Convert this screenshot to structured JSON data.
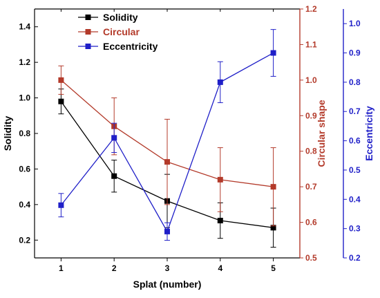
{
  "chart_data": {
    "type": "line",
    "x": [
      1,
      2,
      3,
      4,
      5
    ],
    "xticks": [
      "1",
      "2",
      "3",
      "4",
      "5"
    ],
    "xlabel": "Splat (number)",
    "xlim": [
      0.5,
      5.5
    ],
    "axes": {
      "left": {
        "label": "Solidity",
        "ylim": [
          0.1,
          1.5
        ],
        "ticks": [
          "0.2",
          "0.4",
          "0.6",
          "0.8",
          "1.0",
          "1.2",
          "1.4"
        ],
        "color": "#000000"
      },
      "right1": {
        "label": "Circular shape",
        "ylim": [
          0.5,
          1.2
        ],
        "ticks": [
          "0.5",
          "0.6",
          "0.7",
          "0.8",
          "0.9",
          "1.0",
          "1.1",
          "1.2"
        ],
        "color": "#b33a2a"
      },
      "right2": {
        "label": "Eccentricity",
        "ylim": [
          0.2,
          1.05
        ],
        "ticks": [
          "0.2",
          "0.3",
          "0.4",
          "0.5",
          "0.6",
          "0.7",
          "0.8",
          "0.9",
          "1.0"
        ],
        "color": "#1f1fc8"
      }
    },
    "series": [
      {
        "name": "Solidity",
        "axis": "left",
        "color": "#000000",
        "values": [
          0.98,
          0.56,
          0.42,
          0.31,
          0.27
        ],
        "errors": [
          0.07,
          0.09,
          0.15,
          0.1,
          0.11
        ]
      },
      {
        "name": "Circular",
        "axis": "right1",
        "color": "#b33a2a",
        "values": [
          1.0,
          0.87,
          0.77,
          0.72,
          0.7
        ],
        "errors": [
          0.04,
          0.08,
          0.12,
          0.09,
          0.11
        ]
      },
      {
        "name": "Eccentricity",
        "axis": "right2",
        "color": "#1f1fc8",
        "values": [
          0.38,
          0.61,
          0.29,
          0.8,
          0.9
        ],
        "errors": [
          0.04,
          0.05,
          0.03,
          0.07,
          0.08
        ]
      }
    ],
    "legend_position": "top-left",
    "grid": false
  }
}
